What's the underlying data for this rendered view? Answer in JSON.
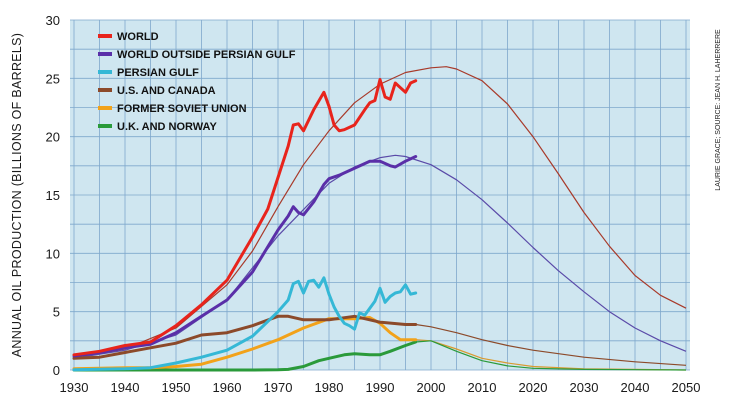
{
  "chart_data": {
    "type": "line",
    "title": "",
    "xlabel": "",
    "ylabel": "ANNUAL OIL PRODUCTION (BILLIONS OF BARRELS)",
    "credit": "LAURIE GRACE; SOURCE: JEAN H. LAHERRERE",
    "xlim": [
      1930,
      2050
    ],
    "ylim": [
      0,
      30
    ],
    "x_ticks": [
      "1930",
      "1940",
      "1950",
      "1960",
      "1970",
      "1980",
      "1990",
      "2000",
      "2010",
      "2020",
      "2030",
      "2040",
      "2050"
    ],
    "y_ticks": [
      "0",
      "5",
      "10",
      "15",
      "20",
      "25",
      "30"
    ],
    "grid": true,
    "legend_position": "top-left",
    "plot_background": "#cfe6f0",
    "grid_color": "#7fa8cc",
    "series": [
      {
        "name": "WORLD",
        "color": "#e8241c",
        "x": [
          1930,
          1935,
          1940,
          1945,
          1950,
          1955,
          1960,
          1965,
          1968,
          1970,
          1972,
          1973,
          1974,
          1975,
          1977,
          1979,
          1980,
          1981,
          1982,
          1983,
          1985,
          1987,
          1988,
          1989,
          1990,
          1991,
          1992,
          1993,
          1994,
          1995,
          1996,
          1997
        ],
        "values": [
          1.3,
          1.6,
          2.1,
          2.4,
          3.8,
          5.6,
          7.7,
          11.4,
          13.8,
          16.5,
          19.2,
          21.0,
          21.1,
          20.5,
          22.3,
          23.8,
          22.6,
          21.0,
          20.5,
          20.6,
          21.0,
          22.3,
          22.9,
          23.1,
          24.9,
          23.4,
          23.2,
          24.6,
          24.2,
          23.8,
          24.6,
          24.8
        ]
      },
      {
        "name": "WORLD OUTSIDE PERSIAN GULF",
        "color": "#5a2fa8",
        "x": [
          1930,
          1935,
          1940,
          1945,
          1950,
          1955,
          1960,
          1965,
          1970,
          1972,
          1973,
          1974,
          1975,
          1977,
          1979,
          1980,
          1982,
          1985,
          1988,
          1990,
          1992,
          1993,
          1995,
          1997
        ],
        "values": [
          1.2,
          1.5,
          1.9,
          2.2,
          3.2,
          4.6,
          6.0,
          8.4,
          12.0,
          13.2,
          14.0,
          13.5,
          13.3,
          14.4,
          15.9,
          16.4,
          16.7,
          17.3,
          17.9,
          17.9,
          17.5,
          17.4,
          17.9,
          18.3
        ]
      },
      {
        "name": "PERSIAN GULF",
        "color": "#35b8d6",
        "x": [
          1930,
          1940,
          1945,
          1950,
          1955,
          1960,
          1965,
          1970,
          1972,
          1973,
          1974,
          1975,
          1976,
          1977,
          1978,
          1979,
          1980,
          1981,
          1982,
          1983,
          1984,
          1985,
          1986,
          1987,
          1988,
          1989,
          1990,
          1991,
          1992,
          1993,
          1994,
          1995,
          1996,
          1997
        ],
        "values": [
          0.02,
          0.1,
          0.2,
          0.6,
          1.1,
          1.7,
          2.9,
          5.0,
          6.0,
          7.4,
          7.6,
          6.6,
          7.6,
          7.7,
          7.1,
          7.9,
          6.5,
          5.4,
          4.6,
          4.0,
          3.8,
          3.5,
          4.9,
          4.7,
          5.3,
          5.9,
          7.0,
          5.8,
          6.3,
          6.6,
          6.7,
          7.3,
          6.5,
          6.6
        ]
      },
      {
        "name": "U.S. AND CANADA",
        "color": "#8c4a2a",
        "x": [
          1930,
          1935,
          1940,
          1945,
          1950,
          1955,
          1960,
          1965,
          1970,
          1972,
          1975,
          1980,
          1985,
          1990,
          1995,
          1997
        ],
        "values": [
          1.0,
          1.1,
          1.5,
          1.9,
          2.3,
          3.0,
          3.2,
          3.8,
          4.6,
          4.6,
          4.3,
          4.3,
          4.6,
          4.1,
          3.9,
          3.9
        ]
      },
      {
        "name": "FORMER SOVIET UNION",
        "color": "#f2a21a",
        "x": [
          1930,
          1940,
          1945,
          1950,
          1955,
          1960,
          1965,
          1970,
          1975,
          1980,
          1985,
          1988,
          1990,
          1992,
          1994,
          1996,
          1997
        ],
        "values": [
          0.1,
          0.2,
          0.2,
          0.3,
          0.5,
          1.1,
          1.8,
          2.6,
          3.6,
          4.4,
          4.4,
          4.5,
          4.0,
          3.2,
          2.6,
          2.6,
          2.6
        ]
      },
      {
        "name": "U.K. AND NORWAY",
        "color": "#2a9a3a",
        "x": [
          1930,
          1965,
          1970,
          1972,
          1975,
          1978,
          1980,
          1983,
          1985,
          1988,
          1990,
          1992,
          1995,
          1997
        ],
        "values": [
          0.0,
          0.0,
          0.02,
          0.05,
          0.3,
          0.8,
          1.0,
          1.3,
          1.4,
          1.3,
          1.3,
          1.6,
          2.1,
          2.4
        ]
      }
    ],
    "projections": [
      {
        "name": "WORLD",
        "color": "#a83a2a",
        "x": [
          1930,
          1940,
          1950,
          1960,
          1965,
          1970,
          1975,
          1980,
          1985,
          1990,
          1995,
          2000,
          2003,
          2005,
          2010,
          2015,
          2020,
          2025,
          2030,
          2035,
          2040,
          2045,
          2050
        ],
        "values": [
          1.0,
          1.8,
          3.6,
          7.3,
          10.2,
          14.0,
          17.6,
          20.5,
          22.9,
          24.5,
          25.5,
          25.9,
          26.0,
          25.8,
          24.8,
          22.8,
          20.0,
          16.8,
          13.5,
          10.6,
          8.1,
          6.4,
          5.3
        ]
      },
      {
        "name": "WORLD OUTSIDE PERSIAN GULF",
        "color": "#5a4aa8",
        "x": [
          1930,
          1940,
          1950,
          1960,
          1970,
          1980,
          1985,
          1990,
          1993,
          1995,
          2000,
          2005,
          2010,
          2015,
          2020,
          2025,
          2030,
          2035,
          2040,
          2045,
          2050
        ],
        "values": [
          1.0,
          1.7,
          3.0,
          6.0,
          11.5,
          16.0,
          17.4,
          18.2,
          18.4,
          18.3,
          17.6,
          16.3,
          14.6,
          12.6,
          10.5,
          8.5,
          6.7,
          5.0,
          3.6,
          2.5,
          1.6
        ]
      },
      {
        "name": "U.S. AND CANADA",
        "color": "#8c4a2a",
        "x": [
          1997,
          2000,
          2005,
          2010,
          2015,
          2020,
          2030,
          2040,
          2050
        ],
        "values": [
          3.9,
          3.7,
          3.2,
          2.6,
          2.1,
          1.7,
          1.1,
          0.7,
          0.4
        ]
      },
      {
        "name": "FORMER SOVIET UNION",
        "color": "#d99a30",
        "x": [
          1997,
          2000,
          2005,
          2010,
          2015,
          2020,
          2030,
          2040,
          2050
        ],
        "values": [
          2.6,
          2.5,
          1.8,
          1.0,
          0.6,
          0.3,
          0.1,
          0.05,
          0.0
        ]
      },
      {
        "name": "U.K. AND NORWAY",
        "color": "#2a9a3a",
        "x": [
          1997,
          2000,
          2005,
          2010,
          2015,
          2020,
          2030,
          2050
        ],
        "values": [
          2.4,
          2.5,
          1.6,
          0.8,
          0.35,
          0.15,
          0.05,
          0.0
        ]
      }
    ]
  }
}
